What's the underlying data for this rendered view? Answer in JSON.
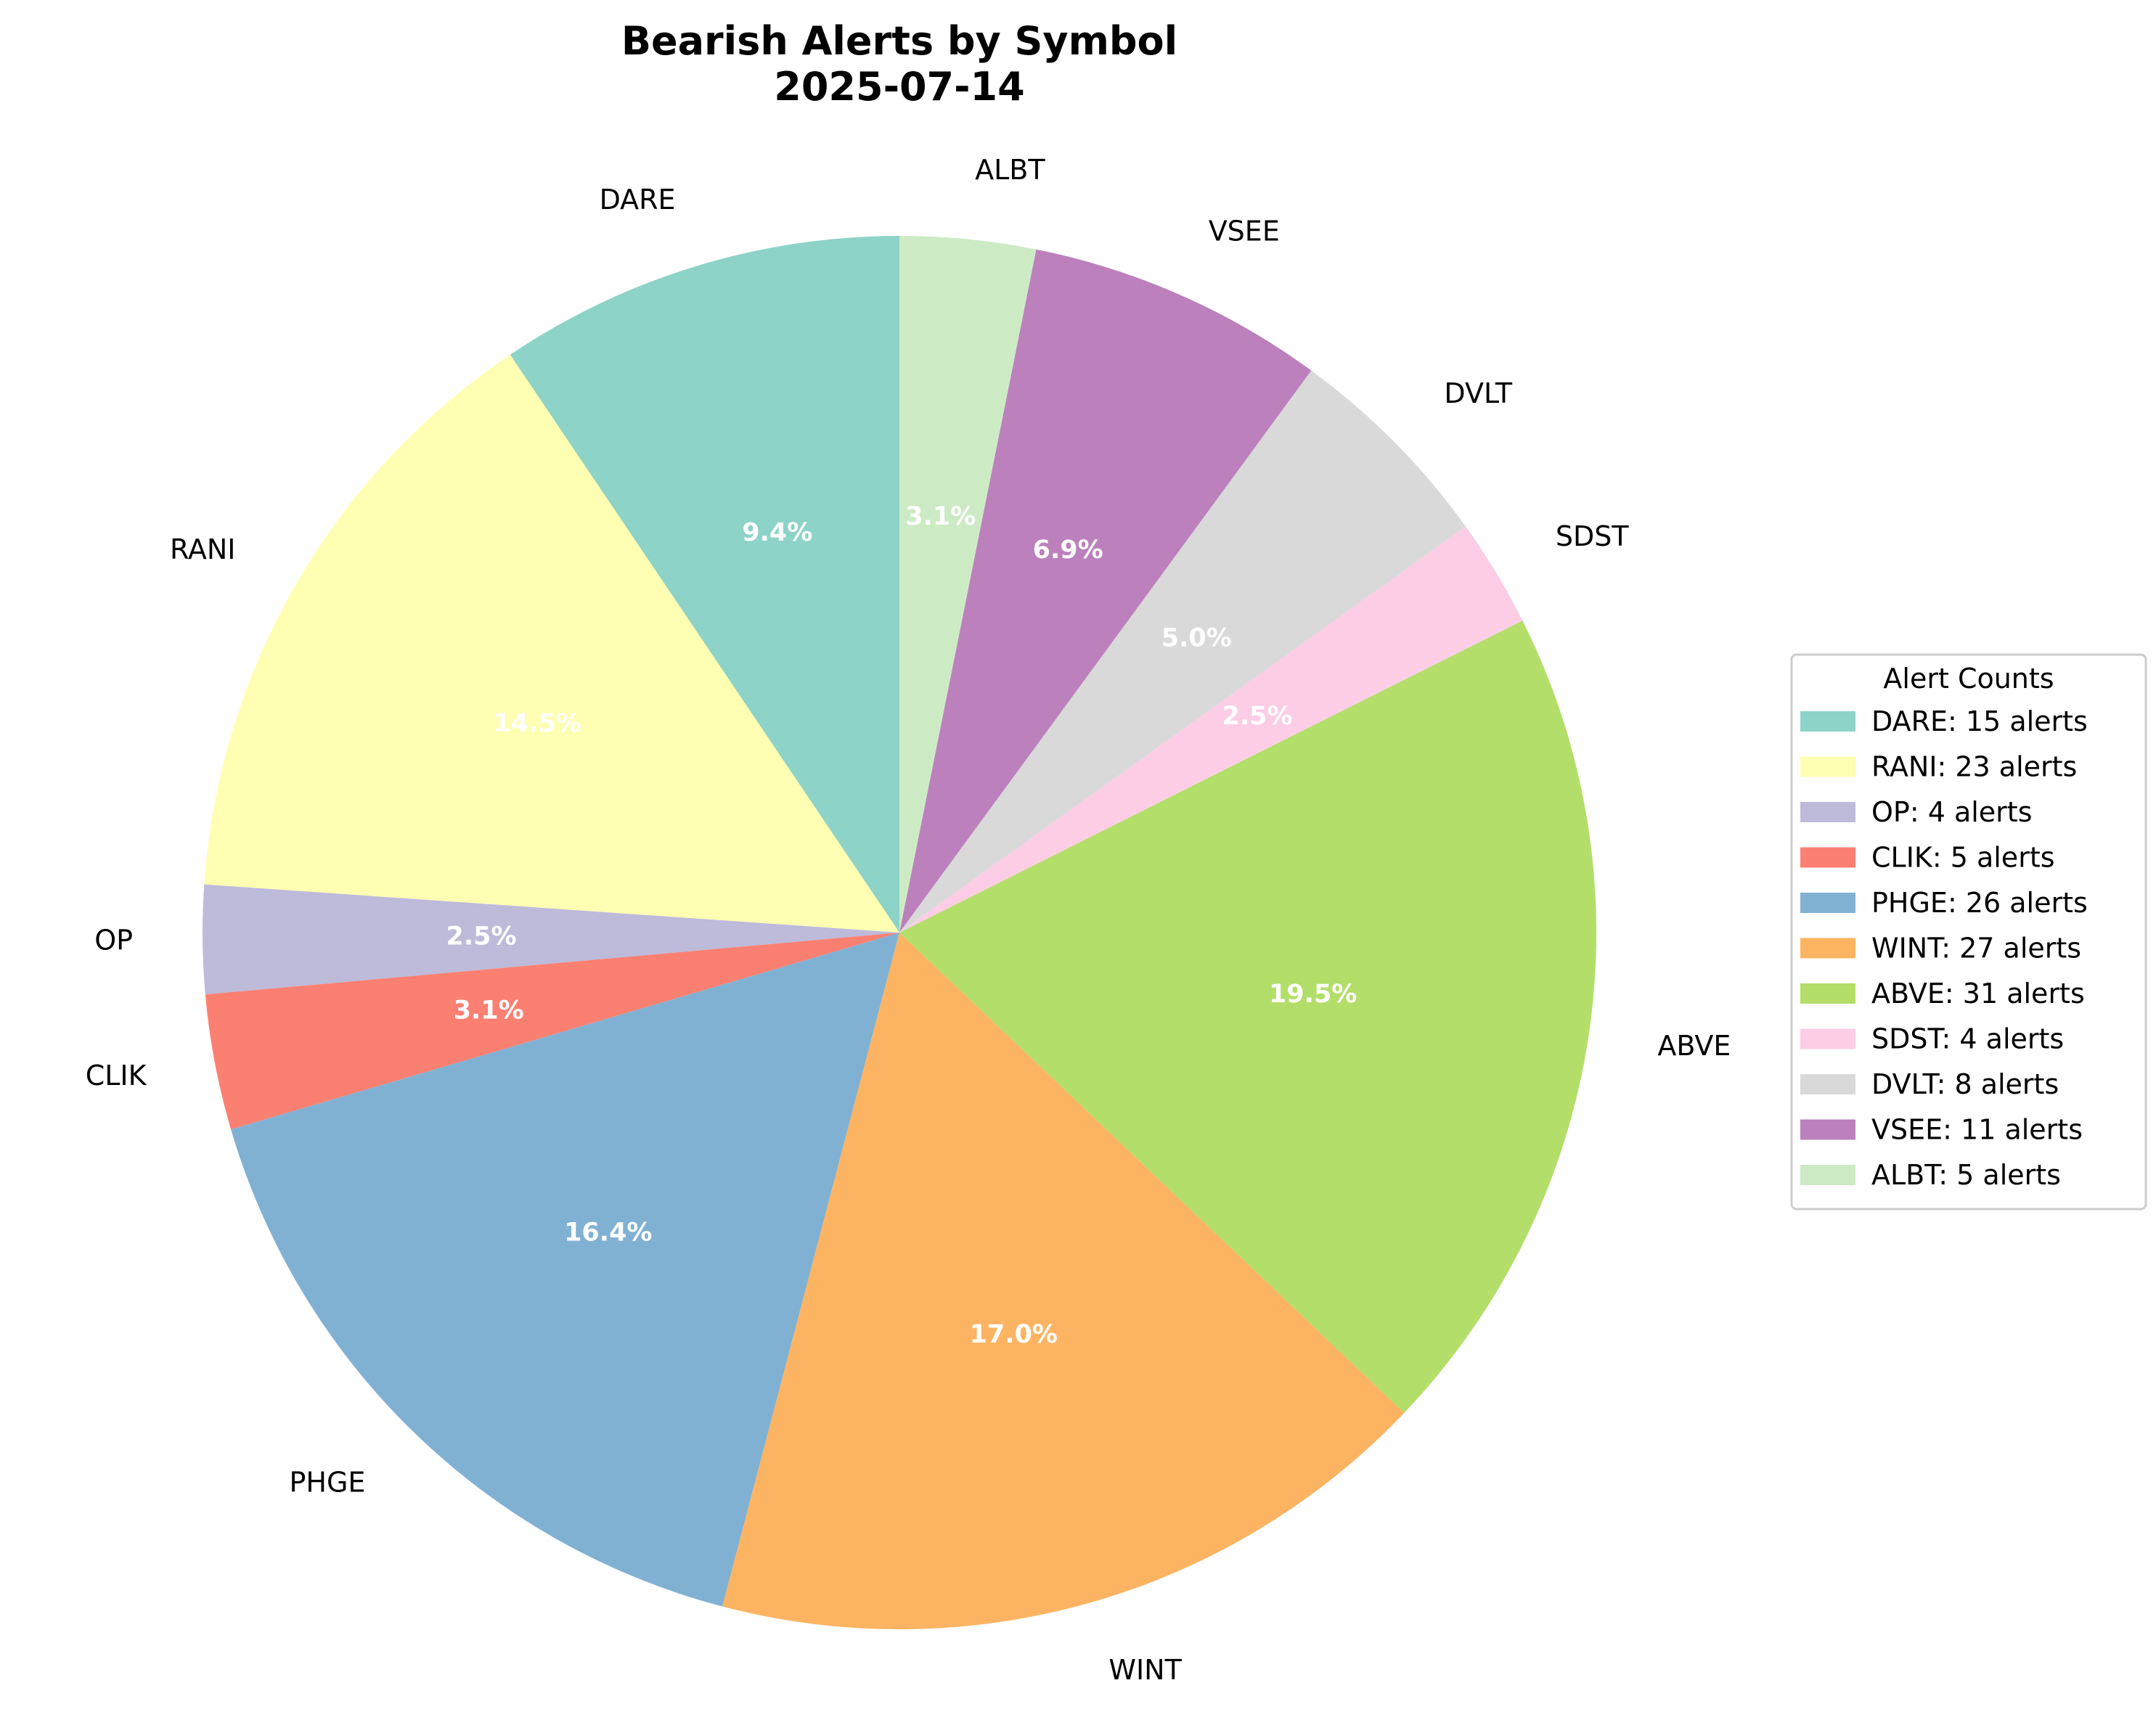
{
  "chart_data": {
    "type": "pie",
    "title": "Bearish Alerts by Symbol",
    "subtitle": "2025-07-14",
    "categories": [
      "DARE",
      "RANI",
      "OP",
      "CLIK",
      "PHGE",
      "WINT",
      "ABVE",
      "SDST",
      "DVLT",
      "VSEE",
      "ALBT"
    ],
    "values": [
      15,
      23,
      4,
      5,
      26,
      27,
      31,
      4,
      8,
      11,
      5
    ],
    "percent_labels": [
      "9.4%",
      "14.5%",
      "2.5%",
      "3.1%",
      "16.4%",
      "17.0%",
      "19.5%",
      "2.5%",
      "5.0%",
      "6.9%",
      "3.1%"
    ],
    "colors": [
      "#8dd3c7",
      "#ffffb3",
      "#bebada",
      "#fb8072",
      "#80b1d3",
      "#fdb462",
      "#b3de69",
      "#fccde5",
      "#d9d9d9",
      "#bc80bd",
      "#ccebc5"
    ],
    "start_angle_deg": 90,
    "direction": "counterclockwise",
    "legend": {
      "title": "Alert Counts",
      "placement": "center-right",
      "entries": [
        "DARE: 15 alerts",
        "RANI: 23 alerts",
        "OP: 4 alerts",
        "CLIK: 5 alerts",
        "PHGE: 26 alerts",
        "WINT: 27 alerts",
        "ABVE: 31 alerts",
        "SDST: 4 alerts",
        "DVLT: 8 alerts",
        "VSEE: 11 alerts",
        "ALBT: 5 alerts"
      ]
    }
  }
}
